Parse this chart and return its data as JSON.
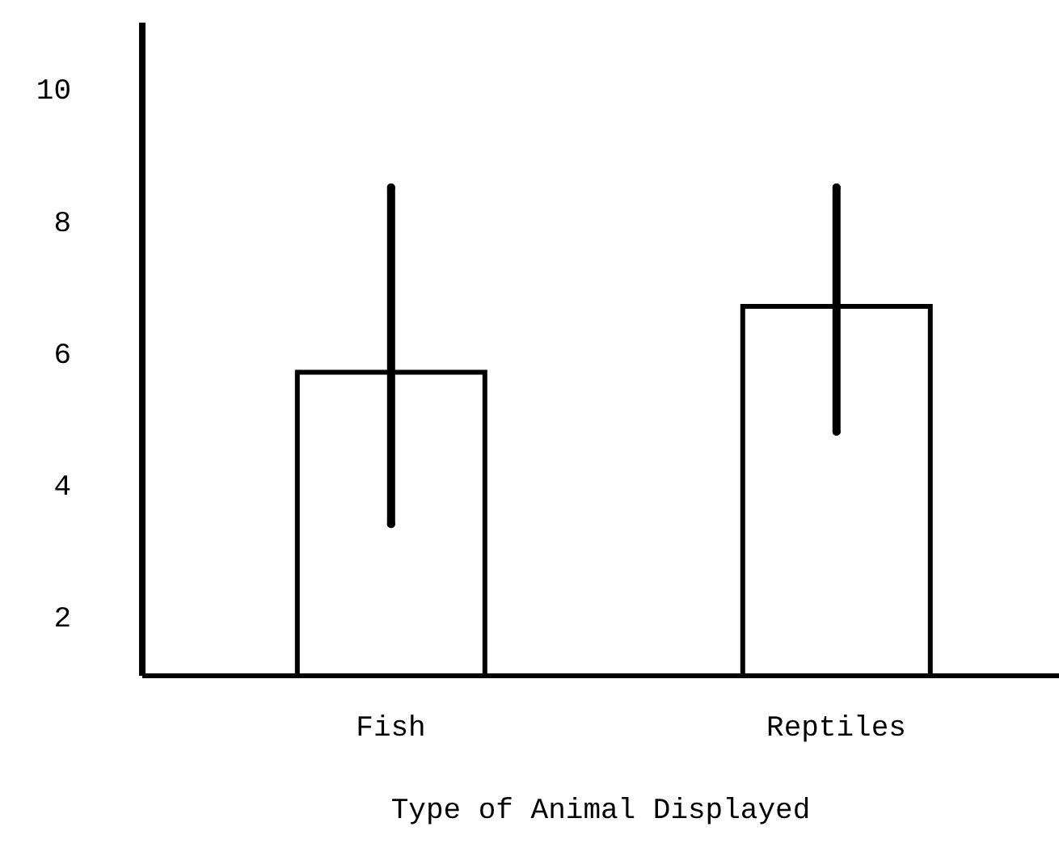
{
  "chart_data": {
    "type": "bar",
    "xlabel": "Type of Animal Displayed",
    "categories": [
      "Fish",
      "Reptiles"
    ],
    "values": [
      5.7,
      6.7
    ],
    "errors": [
      [
        3.4,
        8.5
      ],
      [
        4.8,
        8.5
      ]
    ],
    "color": "#ffffff",
    "ylim": [
      1.1,
      11
    ],
    "yticks": [
      2,
      4,
      6,
      8,
      10
    ]
  }
}
